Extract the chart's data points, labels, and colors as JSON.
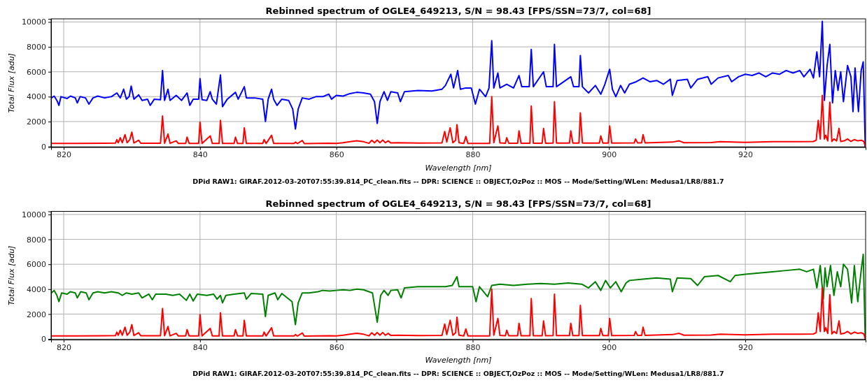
{
  "chart_data": [
    {
      "type": "line",
      "title": "Rebinned spectrum of OGLE4_649213, S/N = 98.43 [FPS/SSN=73/7, col=68]",
      "xlabel": "Wavelength [nm]",
      "ylabel": "Total Flux [adu]",
      "annotations": [
        "DPid RAW1: GIRAF.2012-03-20T07:55:39.814_PC_clean.fits -- DPR: SCIENCE :: OBJECT,OzPoz :: MOS -- Mode/Setting/WLen: Medusa1/LR8/881.7"
      ],
      "xlim": [
        818.15,
        937.65
      ],
      "ylim": [
        -50,
        10250
      ],
      "xticks": [
        820,
        840,
        860,
        880,
        900,
        920
      ],
      "yticks": [
        0,
        2000,
        4000,
        6000,
        8000,
        10000
      ],
      "grid": true,
      "series": [
        {
          "color": "#0000ff",
          "x": [
            818.2,
            818.6,
            819,
            819.3,
            819.6,
            820.5,
            821,
            821.7,
            822,
            822.4,
            823.2,
            823.7,
            824.3,
            825,
            826,
            827,
            827.8,
            828.3,
            828.8,
            829.2,
            829.6,
            829.9,
            830.3,
            831,
            831.5,
            832.3,
            832.7,
            833.3,
            834.2,
            834.5,
            834.8,
            835.3,
            835.6,
            836.5,
            837.3,
            838.1,
            838.5,
            839,
            839.8,
            840,
            840.3,
            841,
            841.5,
            841.8,
            842.4,
            843,
            843.3,
            844,
            845.2,
            845.6,
            846.5,
            846.8,
            848,
            849.2,
            849.6,
            850,
            850.5,
            850.8,
            851.3,
            852,
            853,
            853.6,
            854,
            854.4,
            855,
            856,
            857,
            858,
            858.9,
            859.3,
            860,
            861,
            862,
            863,
            864,
            865,
            865.6,
            866,
            866.4,
            867,
            867.5,
            868,
            869,
            869.4,
            870,
            872,
            874,
            875.5,
            876,
            876.8,
            877.2,
            877.8,
            878.2,
            879,
            879.8,
            880.4,
            881,
            881.9,
            882.4,
            882.8,
            883.1,
            883.7,
            884,
            885,
            886,
            886.8,
            887.2,
            888.3,
            888.6,
            888.9,
            890.4,
            890.8,
            891.8,
            892,
            892.3,
            894.4,
            894.8,
            895.6,
            895.8,
            896.1,
            897,
            898,
            898.8,
            899.4,
            900.1,
            900.5,
            901,
            901.7,
            902.3,
            903,
            904,
            905,
            906,
            907,
            908,
            909,
            909.3,
            910,
            911.5,
            912,
            913,
            914.5,
            915,
            916,
            917.5,
            918,
            919,
            920,
            921,
            922,
            923,
            924,
            925,
            926,
            927,
            928,
            928.6,
            929.5,
            930,
            930.5,
            930.9,
            931.3,
            931.6,
            932,
            932.4,
            932.8,
            933.2,
            933.6,
            934,
            934.4,
            935,
            935.5,
            935.8,
            936.1,
            936.6,
            937,
            937.3,
            937.6
          ],
          "values": [
            3900,
            4050,
            3700,
            3300,
            4000,
            3850,
            4050,
            3900,
            3500,
            4000,
            3900,
            3400,
            3900,
            4050,
            3900,
            4000,
            4300,
            3900,
            4600,
            3800,
            4000,
            4850,
            3800,
            4150,
            3700,
            3800,
            3300,
            3800,
            3750,
            6100,
            3700,
            4600,
            3700,
            4100,
            3700,
            4300,
            3300,
            3800,
            3800,
            5450,
            3750,
            3700,
            4400,
            3800,
            3400,
            5750,
            3200,
            3800,
            4350,
            3800,
            4800,
            3900,
            3900,
            3800,
            2000,
            3800,
            4600,
            3800,
            3300,
            3800,
            3700,
            3000,
            1400,
            3000,
            3900,
            3800,
            4000,
            4000,
            4200,
            3800,
            4100,
            4050,
            4250,
            4350,
            4300,
            4200,
            3600,
            1850,
            3600,
            4400,
            3700,
            4400,
            4300,
            3600,
            4400,
            4500,
            4450,
            4600,
            4900,
            5800,
            4700,
            6100,
            4600,
            4700,
            4700,
            3400,
            4600,
            4000,
            4700,
            8500,
            4700,
            5900,
            4700,
            5000,
            4700,
            5700,
            4800,
            4800,
            7800,
            4800,
            6000,
            4800,
            4800,
            8200,
            4800,
            5600,
            4800,
            4800,
            7300,
            4800,
            4300,
            4900,
            4200,
            5000,
            6200,
            4600,
            4000,
            4900,
            4300,
            5000,
            5200,
            5500,
            5200,
            5300,
            5000,
            5400,
            4100,
            5300,
            5400,
            4700,
            5400,
            5600,
            5000,
            5500,
            5700,
            5200,
            5600,
            5800,
            5700,
            5900,
            5600,
            5900,
            5800,
            6100,
            5900,
            6100,
            5600,
            6200,
            5500,
            7600,
            5600,
            10050,
            3700,
            6500,
            8200,
            3500,
            6100,
            4500,
            6000,
            3600,
            6500,
            5600,
            2800,
            6300,
            2800,
            6100,
            6800,
            0
          ]
        },
        {
          "color": "#ff0000",
          "x": [
            818.2,
            822,
            826,
            827.6,
            827.8,
            828,
            828.3,
            828.6,
            829,
            829.3,
            829.7,
            830,
            830.3,
            831,
            831.3,
            834.2,
            834.5,
            834.8,
            835.3,
            835.6,
            836.5,
            836.8,
            837.9,
            838.1,
            838.4,
            839.8,
            840,
            840.3,
            841.5,
            841.8,
            842.8,
            843,
            843.3,
            845,
            845.2,
            845.5,
            846.3,
            846.5,
            846.8,
            849.2,
            849.4,
            849.7,
            850.5,
            850.8,
            853.8,
            854,
            854.3,
            855,
            855.3,
            858.9,
            860,
            861,
            862,
            863,
            864,
            864.8,
            865.2,
            865.6,
            866,
            866.4,
            866.8,
            867.2,
            867.6,
            868,
            869,
            872,
            875.5,
            875.9,
            876.2,
            876.7,
            877.1,
            877.5,
            877.7,
            878,
            878.7,
            879,
            879.3,
            882.5,
            882.8,
            883.1,
            883.7,
            884,
            884.8,
            885,
            885.3,
            886.6,
            886.8,
            887.1,
            888.4,
            888.6,
            888.9,
            890.2,
            890.4,
            890.7,
            891.8,
            892,
            892.3,
            894.2,
            894.4,
            894.7,
            895.6,
            895.8,
            896.1,
            898.6,
            898.8,
            899.1,
            899.9,
            900.1,
            900.4,
            903.7,
            903.9,
            904.2,
            904.8,
            905,
            905.3,
            909.3,
            910.3,
            911,
            915,
            916.3,
            920,
            924,
            928,
            930,
            930.4,
            930.7,
            931,
            931.3,
            931.6,
            931.8,
            932.1,
            932.4,
            932.7,
            933,
            933.4,
            933.75,
            934,
            934.5,
            935,
            935.5,
            936,
            936.5,
            937,
            937.4,
            937.6
          ],
          "values": [
            250,
            250,
            260,
            270,
            550,
            300,
            700,
            300,
            950,
            300,
            550,
            1150,
            280,
            500,
            260,
            260,
            2450,
            260,
            1000,
            250,
            450,
            250,
            250,
            750,
            250,
            250,
            1950,
            240,
            850,
            240,
            240,
            2100,
            240,
            240,
            750,
            240,
            240,
            1500,
            240,
            240,
            550,
            240,
            900,
            240,
            240,
            350,
            230,
            480,
            230,
            260,
            250,
            300,
            380,
            450,
            380,
            250,
            500,
            300,
            520,
            300,
            520,
            300,
            450,
            280,
            300,
            270,
            280,
            1200,
            350,
            1500,
            300,
            500,
            1750,
            300,
            250,
            800,
            250,
            250,
            4000,
            300,
            1650,
            280,
            260,
            700,
            260,
            260,
            1250,
            260,
            260,
            3250,
            260,
            260,
            1450,
            260,
            270,
            3600,
            270,
            270,
            1250,
            270,
            270,
            2700,
            270,
            270,
            850,
            270,
            270,
            1650,
            270,
            280,
            600,
            280,
            290,
            950,
            290,
            350,
            450,
            300,
            320,
            380,
            330,
            380,
            380,
            400,
            500,
            2100,
            600,
            4100,
            600,
            900,
            450,
            3550,
            400,
            600,
            450,
            1450,
            400,
            450,
            600,
            400,
            550,
            450,
            500,
            400,
            0
          ]
        }
      ]
    },
    {
      "type": "line",
      "title": "Rebinned spectrum of OGLE4_649213, S/N = 98.43 [FPS/SSN=73/7, col=68]",
      "xlabel": "Wavelength [nm]",
      "ylabel": "Total Flux [adu]",
      "annotations": [
        "DPid RAW1: GIRAF.2012-03-20T07:55:39.814_PC_clean.fits -- DPR: SCIENCE :: OBJECT,OzPoz :: MOS -- Mode/Setting/WLen: Medusa1/LR8/881.7"
      ],
      "xlim": [
        818.15,
        937.65
      ],
      "ylim": [
        -50,
        10250
      ],
      "xticks": [
        820,
        840,
        860,
        880,
        900,
        920
      ],
      "yticks": [
        0,
        2000,
        4000,
        6000,
        8000,
        10000
      ],
      "grid": true,
      "series": [
        {
          "color": "#008000",
          "x": [
            818.2,
            818.6,
            819,
            819.3,
            819.7,
            820.5,
            821,
            821.7,
            822,
            822.5,
            823.3,
            823.7,
            824.3,
            825,
            826,
            827,
            828,
            828.6,
            829.2,
            830,
            831,
            831.5,
            832.5,
            833,
            833.5,
            835,
            836,
            837,
            838,
            838.5,
            839,
            839.6,
            841,
            842,
            842.5,
            843,
            843.3,
            843.8,
            845,
            846.5,
            846.8,
            847.5,
            849.2,
            849.6,
            850,
            851,
            851.4,
            852,
            853.5,
            854,
            854.4,
            855,
            856,
            857.3,
            858,
            859,
            860,
            861,
            862,
            863,
            864,
            865.3,
            866,
            866.5,
            867,
            867.6,
            868,
            869,
            869.5,
            870,
            872,
            874,
            876,
            877,
            877.7,
            878,
            880,
            880.5,
            881,
            882.2,
            882.8,
            884,
            886,
            888,
            890,
            892,
            894,
            896,
            897,
            898,
            898.8,
            899.5,
            900.2,
            901,
            901.8,
            902.5,
            903,
            905,
            907,
            909,
            909.3,
            910,
            912,
            913,
            914,
            916,
            917.8,
            918.5,
            920,
            922,
            924,
            926,
            928,
            929,
            930,
            930.5,
            931,
            931.45,
            931.7,
            932,
            932.5,
            933,
            933.5,
            934,
            934.4,
            935,
            935.6,
            936,
            936.5,
            937,
            937.3,
            937.6
          ],
          "values": [
            3700,
            3900,
            3500,
            3000,
            3700,
            3600,
            3800,
            3700,
            3300,
            3800,
            3700,
            3150,
            3700,
            3800,
            3700,
            3800,
            3700,
            3500,
            3700,
            3600,
            3700,
            3300,
            3600,
            3150,
            3600,
            3600,
            3500,
            3600,
            3100,
            3600,
            3050,
            3600,
            3500,
            3600,
            3200,
            3500,
            2900,
            3500,
            3600,
            3700,
            3200,
            3650,
            3600,
            1800,
            3500,
            3700,
            3150,
            3650,
            3000,
            1150,
            2900,
            3700,
            3700,
            3800,
            3900,
            3850,
            3900,
            3950,
            3900,
            4000,
            3950,
            3700,
            1350,
            3500,
            3900,
            3500,
            3900,
            3950,
            3300,
            4100,
            4200,
            4200,
            4200,
            4300,
            5000,
            4200,
            4200,
            3000,
            4200,
            3400,
            4300,
            4400,
            4300,
            4400,
            4450,
            4400,
            4500,
            4400,
            4100,
            4600,
            3900,
            4700,
            4100,
            4600,
            3800,
            4500,
            4700,
            4800,
            4900,
            4800,
            3800,
            4900,
            4850,
            4300,
            5000,
            5100,
            4600,
            5100,
            5200,
            5300,
            5400,
            5500,
            5600,
            5400,
            5600,
            4100,
            5900,
            3200,
            5700,
            4200,
            5900,
            3500,
            5400,
            4200,
            6000,
            5600,
            2900,
            5900,
            3000,
            5500,
            6800,
            0
          ]
        },
        {
          "color": "#ff0000",
          "x": [
            818.2,
            822,
            826,
            827.6,
            827.8,
            828,
            828.3,
            828.6,
            829,
            829.3,
            829.7,
            830,
            830.3,
            831,
            831.3,
            834.2,
            834.5,
            834.8,
            835.3,
            835.6,
            836.5,
            836.8,
            837.9,
            838.1,
            838.4,
            839.8,
            840,
            840.3,
            841.5,
            841.8,
            842.8,
            843,
            843.3,
            845,
            845.2,
            845.5,
            846.3,
            846.5,
            846.8,
            849.2,
            849.4,
            849.7,
            850.5,
            850.8,
            853.8,
            854,
            854.3,
            855,
            855.3,
            858.9,
            860,
            861,
            862,
            863,
            864,
            864.8,
            865.2,
            865.6,
            866,
            866.4,
            866.8,
            867.2,
            867.6,
            868,
            869,
            872,
            875.5,
            875.9,
            876.2,
            876.7,
            877.1,
            877.5,
            877.7,
            878,
            878.7,
            879,
            879.3,
            882.5,
            882.8,
            883.1,
            883.7,
            884,
            884.8,
            885,
            885.3,
            886.6,
            886.8,
            887.1,
            888.4,
            888.6,
            888.9,
            890.2,
            890.4,
            890.7,
            891.8,
            892,
            892.3,
            894.2,
            894.4,
            894.7,
            895.6,
            895.8,
            896.1,
            898.6,
            898.8,
            899.1,
            899.9,
            900.1,
            900.4,
            903.7,
            903.9,
            904.2,
            904.8,
            905,
            905.3,
            909.3,
            910.3,
            911,
            915,
            916.3,
            920,
            924,
            928,
            930,
            930.4,
            930.7,
            931,
            931.3,
            931.6,
            931.8,
            932.1,
            932.4,
            932.7,
            933,
            933.4,
            933.75,
            934,
            934.5,
            935,
            935.5,
            936,
            936.5,
            937,
            937.4,
            937.6
          ],
          "values": [
            250,
            250,
            260,
            270,
            550,
            300,
            700,
            300,
            950,
            300,
            550,
            1150,
            280,
            500,
            260,
            260,
            2450,
            260,
            1000,
            250,
            450,
            250,
            250,
            750,
            250,
            250,
            1950,
            240,
            850,
            240,
            240,
            2100,
            240,
            240,
            750,
            240,
            240,
            1500,
            240,
            240,
            550,
            240,
            900,
            240,
            240,
            350,
            230,
            480,
            230,
            260,
            250,
            300,
            380,
            450,
            380,
            250,
            500,
            300,
            520,
            300,
            520,
            300,
            450,
            280,
            300,
            270,
            280,
            1200,
            350,
            1500,
            300,
            500,
            1750,
            300,
            250,
            800,
            250,
            250,
            4000,
            300,
            1650,
            280,
            260,
            700,
            260,
            260,
            1250,
            260,
            260,
            3250,
            260,
            260,
            1450,
            260,
            270,
            3600,
            270,
            270,
            1250,
            270,
            270,
            2700,
            270,
            270,
            850,
            270,
            270,
            1650,
            270,
            280,
            600,
            280,
            290,
            950,
            290,
            350,
            450,
            300,
            320,
            380,
            330,
            380,
            380,
            400,
            500,
            2100,
            600,
            4100,
            600,
            900,
            450,
            3550,
            400,
            600,
            450,
            1450,
            400,
            450,
            600,
            400,
            550,
            450,
            500,
            400,
            0
          ]
        }
      ]
    }
  ]
}
